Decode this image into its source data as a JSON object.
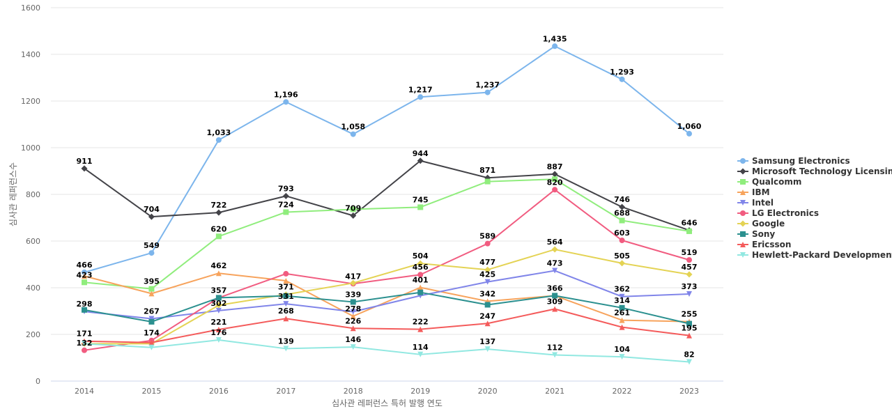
{
  "chart_data": {
    "type": "line",
    "title": "",
    "xlabel": "심사관 레퍼런스 특허 발행 연도",
    "ylabel": "심사관 레퍼런스수",
    "x": [
      "2014",
      "2015",
      "2016",
      "2017",
      "2018",
      "2019",
      "2020",
      "2021",
      "2022",
      "2023"
    ],
    "ylim": [
      0,
      1600
    ],
    "yticks": [
      0,
      200,
      400,
      600,
      800,
      1000,
      1200,
      1400,
      1600
    ],
    "grid": true,
    "legend_position": "right",
    "series": [
      {
        "name": "Samsung Electronics",
        "color": "#7cb5ec",
        "marker": "circle",
        "values": [
          466,
          549,
          1033,
          1196,
          1058,
          1217,
          1237,
          1435,
          1293,
          1060
        ],
        "labels": [
          "466",
          "549",
          "1,033",
          "1,196",
          "1,058",
          "1,217",
          "1,237",
          "1,435",
          "1,293",
          "1,060"
        ]
      },
      {
        "name": "Microsoft Technology Licensing",
        "color": "#434348",
        "marker": "diamond",
        "values": [
          911,
          704,
          722,
          793,
          709,
          944,
          871,
          887,
          746,
          646
        ],
        "labels": [
          "911",
          "704",
          "722",
          "793",
          "709",
          "944",
          "871",
          "887",
          "746",
          "646"
        ]
      },
      {
        "name": "Qualcomm",
        "color": "#90ed7d",
        "marker": "square",
        "values": [
          423,
          395,
          620,
          724,
          736,
          745,
          855,
          865,
          688,
          642
        ],
        "labels": [
          "423",
          "395",
          "620",
          "724",
          "",
          "745",
          "",
          "",
          "688",
          ""
        ]
      },
      {
        "name": "IBM",
        "color": "#f7a35c",
        "marker": "triangle",
        "values": [
          450,
          375,
          462,
          430,
          278,
          401,
          342,
          366,
          261,
          255
        ],
        "labels": [
          "",
          "",
          "462",
          "",
          "278",
          "401",
          "342",
          "",
          "261",
          "255"
        ]
      },
      {
        "name": "Intel",
        "color": "#8085e9",
        "marker": "triangle-down",
        "values": [
          298,
          267,
          302,
          331,
          297,
          366,
          425,
          473,
          362,
          373
        ],
        "labels": [
          "298",
          "267",
          "302",
          "331",
          "",
          "",
          "425",
          "473",
          "362",
          "373"
        ]
      },
      {
        "name": "LG Electronics",
        "color": "#f15c80",
        "marker": "circle",
        "values": [
          132,
          174,
          357,
          460,
          417,
          456,
          589,
          820,
          603,
          519
        ],
        "labels": [
          "132",
          "174",
          "357",
          "",
          "417",
          "456",
          "589",
          "820",
          "603",
          "519"
        ]
      },
      {
        "name": "Google",
        "color": "#e4d354",
        "marker": "diamond",
        "values": [
          160,
          160,
          325,
          371,
          420,
          504,
          477,
          564,
          505,
          457
        ],
        "labels": [
          "",
          "",
          "",
          "371",
          "",
          "504",
          "477",
          "564",
          "505",
          "457"
        ]
      },
      {
        "name": "Sony",
        "color": "#2b908f",
        "marker": "square",
        "values": [
          305,
          254,
          357,
          365,
          339,
          380,
          327,
          366,
          314,
          246
        ],
        "labels": [
          "",
          "",
          "",
          "",
          "339",
          "",
          "",
          "366",
          "314",
          ""
        ]
      },
      {
        "name": "Ericsson",
        "color": "#f45b5b",
        "marker": "triangle",
        "values": [
          171,
          165,
          221,
          268,
          226,
          222,
          247,
          309,
          231,
          195
        ],
        "labels": [
          "171",
          "",
          "221",
          "268",
          "226",
          "222",
          "247",
          "309",
          "",
          "195"
        ]
      },
      {
        "name": "Hewlett-Packard Development",
        "color": "#91e8e1",
        "marker": "triangle-down",
        "values": [
          160,
          144,
          176,
          139,
          146,
          114,
          137,
          112,
          104,
          82
        ],
        "labels": [
          "",
          "",
          "176",
          "139",
          "146",
          "114",
          "137",
          "112",
          "104",
          "82"
        ]
      }
    ]
  }
}
